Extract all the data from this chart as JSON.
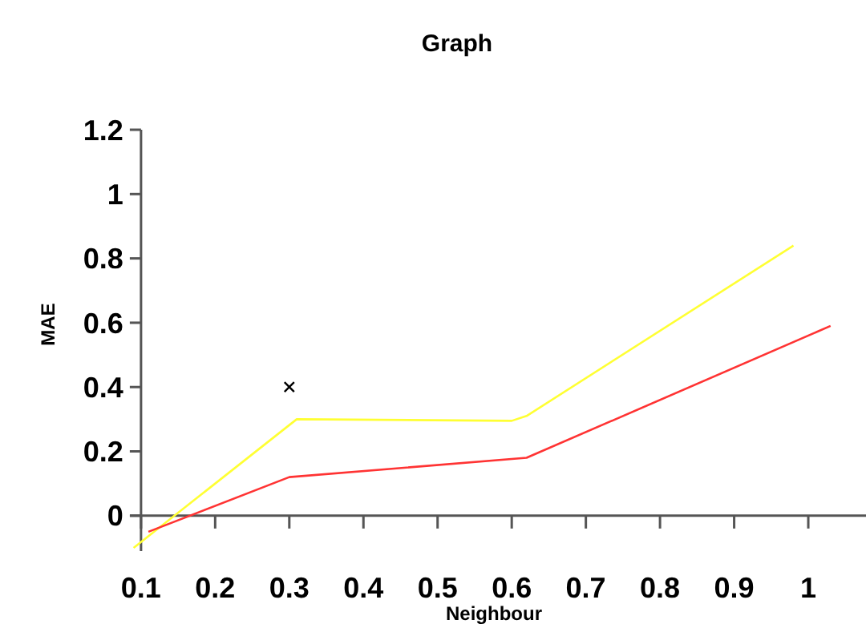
{
  "chart_data": {
    "type": "line",
    "title": "Graph",
    "xlabel": "Neighbour",
    "ylabel": "MAE",
    "xlim": [
      0.085,
      1.08
    ],
    "xticks": [
      0.1,
      0.2,
      0.3,
      0.4,
      0.5,
      0.6,
      0.7,
      0.8,
      0.9,
      1
    ],
    "ylim": [
      -0.11,
      1.2
    ],
    "yticks": [
      0,
      0.2,
      0.4,
      0.6,
      0.8,
      1,
      1.2
    ],
    "grid": false,
    "marker": "none",
    "line_style": "solid",
    "series": [
      {
        "color": "#ffff33",
        "x": [
          0.09,
          0.31,
          0.6,
          0.62,
          0.98
        ],
        "values": [
          -0.1,
          0.3,
          0.295,
          0.31,
          0.84
        ]
      },
      {
        "color": "#ff3333",
        "x": [
          0.11,
          0.3,
          0.62,
          1.03
        ],
        "values": [
          -0.05,
          0.12,
          0.18,
          0.59
        ]
      },
      {
        "type": "scatter",
        "marker": "cross",
        "color": "#000000",
        "x": [
          0.3
        ],
        "values": [
          0.4
        ]
      }
    ]
  }
}
